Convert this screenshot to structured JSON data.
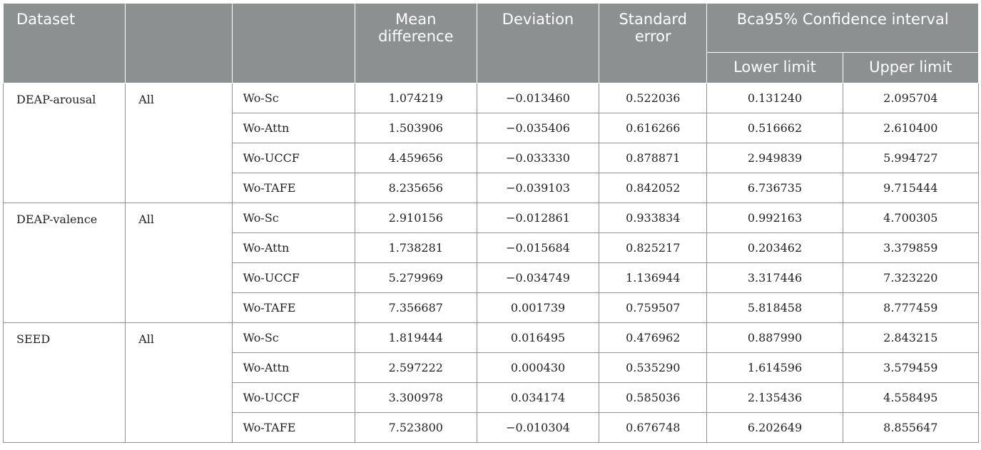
{
  "header": {
    "dataset": "Dataset",
    "col2": "",
    "col3": "",
    "mean_difference": "Mean difference",
    "deviation": "Deviation",
    "standard_error": "Standard error",
    "ci": "Bca95% Confidence interval",
    "lower": "Lower limit",
    "upper": "Upper limit"
  },
  "groups": [
    {
      "dataset": "DEAP-arousal",
      "subset": "All",
      "rows": [
        [
          "Wo-Sc",
          "1.074219",
          "−0.013460",
          "0.522036",
          "0.131240",
          "2.095704"
        ],
        [
          "Wo-Attn",
          "1.503906",
          "−0.035406",
          "0.616266",
          "0.516662",
          "2.610400"
        ],
        [
          "Wo-UCCF",
          "4.459656",
          "−0.033330",
          "0.878871",
          "2.949839",
          "5.994727"
        ],
        [
          "Wo-TAFE",
          "8.235656",
          "−0.039103",
          "0.842052",
          "6.736735",
          "9.715444"
        ]
      ]
    },
    {
      "dataset": "DEAP-valence",
      "subset": "All",
      "rows": [
        [
          "Wo-Sc",
          "2.910156",
          "−0.012861",
          "0.933834",
          "0.992163",
          "4.700305"
        ],
        [
          "Wo-Attn",
          "1.738281",
          "−0.015684",
          "0.825217",
          "0.203462",
          "3.379859"
        ],
        [
          "Wo-UCCF",
          "5.279969",
          "−0.034749",
          "1.136944",
          "3.317446",
          "7.323220"
        ],
        [
          "Wo-TAFE",
          "7.356687",
          "0.001739",
          "0.759507",
          "5.818458",
          "8.777459"
        ]
      ]
    },
    {
      "dataset": "SEED",
      "subset": "All",
      "rows": [
        [
          "Wo-Sc",
          "1.819444",
          "0.016495",
          "0.476962",
          "0.887990",
          "2.843215"
        ],
        [
          "Wo-Attn",
          "2.597222",
          "0.000430",
          "0.535290",
          "1.614596",
          "3.579459"
        ],
        [
          "Wo-UCCF",
          "3.300978",
          "0.034174",
          "0.585036",
          "2.135436",
          "4.558495"
        ],
        [
          "Wo-TAFE",
          "7.523800",
          "−0.010304",
          "0.676748",
          "6.202649",
          "8.855647"
        ]
      ]
    }
  ]
}
